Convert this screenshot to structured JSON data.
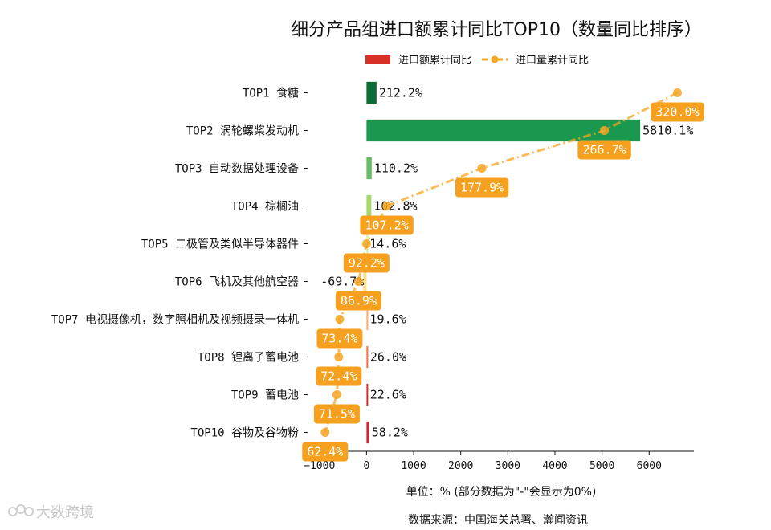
{
  "chart_data": {
    "type": "bar",
    "title": "细分产品组进口额累计同比TOP10（数量同比排序）",
    "categories": [
      "TOP1 食糖",
      "TOP2 涡轮螺桨发动机",
      "TOP3 自动数据处理设备",
      "TOP4 棕榈油",
      "TOP5 二极管及类似半导体器件",
      "TOP6 飞机及其他航空器",
      "TOP7 电视摄像机，数字照相机及视频摄录一体机",
      "TOP8 锂离子蓄电池",
      "TOP9 蓄电池",
      "TOP10 谷物及谷物粉"
    ],
    "series": [
      {
        "name": "进口额累计同比",
        "type": "bar",
        "values": [
          212.2,
          5810.1,
          110.2,
          102.8,
          14.6,
          -69.7,
          19.6,
          26.0,
          22.6,
          58.2
        ],
        "labels": [
          "212.2%",
          "5810.1%",
          "110.2%",
          "102.8%",
          "14.6%",
          "-69.7%",
          "19.6%",
          "26.0%",
          "22.6%",
          "58.2%"
        ],
        "colors": [
          "#0b6b35",
          "#1a9850",
          "#66bd63",
          "#a6d96a",
          "#d9ef8b",
          "#fee08b",
          "#fdae61",
          "#f46d43",
          "#d73027",
          "#c8273a"
        ]
      },
      {
        "name": "进口量累计同比",
        "type": "line",
        "color": "#f5a623",
        "label_bg": "#f5a01e",
        "x": [
          6600,
          5050,
          2450,
          430,
          0,
          -170,
          -570,
          -590,
          -630,
          -880
        ],
        "values": [
          320.0,
          266.7,
          177.9,
          107.2,
          92.2,
          86.9,
          73.4,
          72.4,
          71.5,
          62.4
        ],
        "labels": [
          "320.0%",
          "266.7%",
          "177.9%",
          "107.2%",
          "92.2%",
          "86.9%",
          "73.4%",
          "72.4%",
          "71.5%",
          "62.4%"
        ]
      }
    ],
    "xlim": [
      -1200,
      6950
    ],
    "xticks": [
      -1000,
      0,
      1000,
      2000,
      3000,
      4000,
      5000,
      6000
    ],
    "xtick_labels": [
      "−1000",
      "0",
      "1000",
      "2000",
      "3000",
      "4000",
      "5000",
      "6000"
    ],
    "legend_position": "top-center",
    "grid": false
  },
  "notes": {
    "unit": "单位：%  (部分数据为\"-\"会显示为0%)",
    "source": "数据来源：中国海关总署、瀚闻资讯"
  },
  "watermark": "大数跨境"
}
